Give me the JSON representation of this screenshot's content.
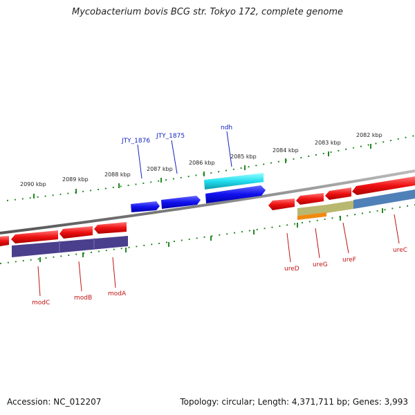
{
  "title": "Mycobacterium bovis BCG str. Tokyo 172, complete genome",
  "footer": {
    "accession": "Accession: NC_012207",
    "summary": "Topology: circular; Length: 4,371,711 bp; Genes: 3,993"
  },
  "upper_ruler_labels": [
    "2082 kbp",
    "2083 kbp",
    "2084 kbp",
    "2085 kbp",
    "2086 kbp",
    "2087 kbp",
    "2088 kbp",
    "2089 kbp",
    "2090 kbp"
  ],
  "top_gene_labels": [
    "JTY_1876",
    "JTY_1875",
    "ndh"
  ],
  "bottom_gene_labels": [
    "modC",
    "modB",
    "modA",
    "ureD",
    "ureG",
    "ureF",
    "ureC"
  ],
  "colors": {
    "forward_gene": "#ee1111",
    "reverse_gene": "#1111ee",
    "ndh_gene": "#22ddee",
    "mod_protein": "#4a3f8c",
    "ure_protein_a": "#b8b870",
    "ure_protein_b": "#5080b8",
    "ure_protein_c": "#f08a10",
    "ruler_tick": "#228822",
    "backbone": "#888888"
  }
}
